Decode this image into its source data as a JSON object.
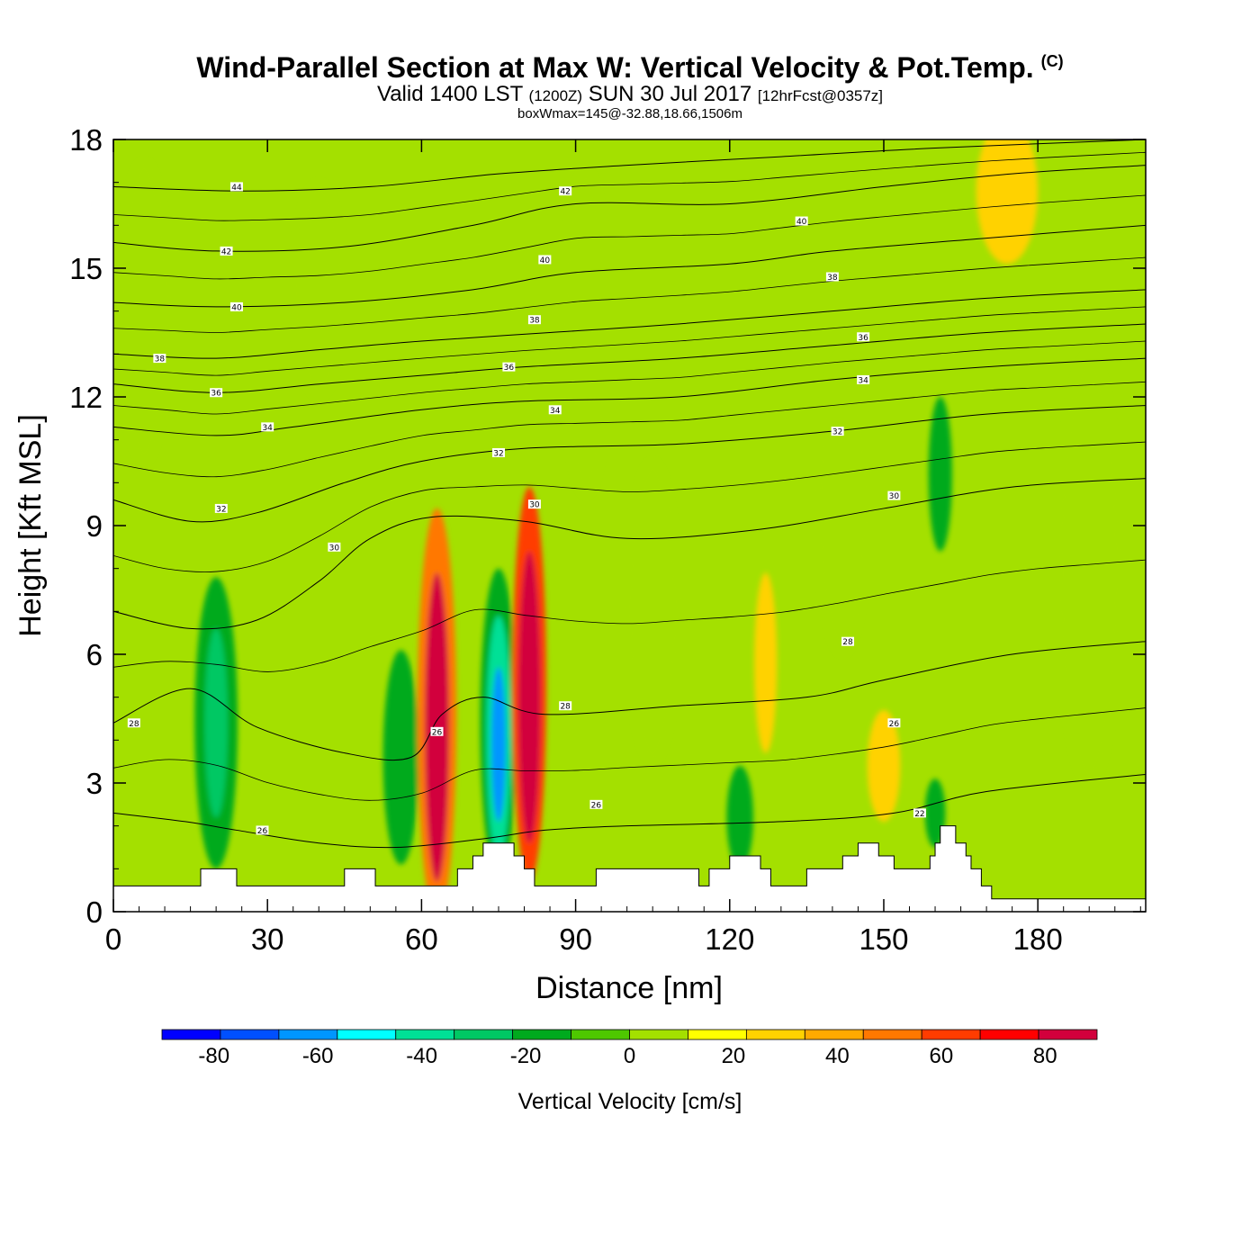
{
  "title": {
    "main": "Wind-Parallel Section at Max W: Vertical Velocity & Pot.Temp.",
    "copyright": "(C)",
    "valid_prefix": "Valid 1400 LST",
    "valid_utc": "(1200Z)",
    "valid_date": "SUN 30 Jul 2017",
    "forecast": "[12hrFcst@0357z]",
    "box_info": "boxWmax=145@-32.88,18.66,1506m"
  },
  "colors": {
    "background_field": "#a4e000",
    "terrain": "#ffffff",
    "contour_line": "#000000",
    "velocity_scale": [
      "#0000ff",
      "#0050ff",
      "#0096ff",
      "#00ffff",
      "#00e096",
      "#00c864",
      "#00aa1e",
      "#4ec800",
      "#a4e000",
      "#ffff00",
      "#ffd200",
      "#ffaa00",
      "#ff7800",
      "#ff3c00",
      "#ff0000",
      "#d2003c"
    ]
  },
  "chart_data": {
    "type": "heatmap",
    "xlabel": "Distance [nm]",
    "ylabel": "Height [Kft MSL]",
    "xlim": [
      0,
      201
    ],
    "ylim": [
      0,
      18
    ],
    "x_ticks": [
      0,
      30,
      60,
      90,
      120,
      150,
      180
    ],
    "y_ticks": [
      0,
      3,
      6,
      9,
      12,
      15,
      18
    ],
    "colorbar": {
      "title": "Vertical Velocity [cm/s]",
      "levels": [
        -90,
        -80,
        -70,
        -60,
        -50,
        -40,
        -30,
        -20,
        -10,
        0,
        10,
        20,
        30,
        40,
        50,
        60,
        70,
        80,
        90
      ],
      "tick_labels": [
        -80,
        -60,
        -40,
        -20,
        0,
        20,
        40,
        60,
        80
      ]
    },
    "terrain_height_kft": [
      [
        0,
        0.6
      ],
      [
        17,
        0.6
      ],
      [
        17,
        1.0
      ],
      [
        24,
        1.0
      ],
      [
        24,
        0.6
      ],
      [
        45,
        0.6
      ],
      [
        45,
        1.0
      ],
      [
        51,
        1.0
      ],
      [
        51,
        0.6
      ],
      [
        67,
        0.6
      ],
      [
        67,
        1.0
      ],
      [
        70,
        1.0
      ],
      [
        70,
        1.3
      ],
      [
        72,
        1.3
      ],
      [
        72,
        1.6
      ],
      [
        78,
        1.6
      ],
      [
        78,
        1.3
      ],
      [
        80,
        1.3
      ],
      [
        80,
        1.0
      ],
      [
        82,
        1.0
      ],
      [
        82,
        0.6
      ],
      [
        94,
        0.6
      ],
      [
        94,
        1.0
      ],
      [
        114,
        1.0
      ],
      [
        114,
        0.6
      ],
      [
        116,
        0.6
      ],
      [
        116,
        1.0
      ],
      [
        120,
        1.0
      ],
      [
        120,
        1.3
      ],
      [
        126,
        1.3
      ],
      [
        126,
        1.0
      ],
      [
        128,
        1.0
      ],
      [
        128,
        0.6
      ],
      [
        135,
        0.6
      ],
      [
        135,
        1.0
      ],
      [
        142,
        1.0
      ],
      [
        142,
        1.3
      ],
      [
        145,
        1.3
      ],
      [
        145,
        1.6
      ],
      [
        149,
        1.6
      ],
      [
        149,
        1.3
      ],
      [
        152,
        1.3
      ],
      [
        152,
        1.0
      ],
      [
        159,
        1.0
      ],
      [
        159,
        1.3
      ],
      [
        160,
        1.3
      ],
      [
        160,
        1.6
      ],
      [
        161,
        1.6
      ],
      [
        161,
        2.0
      ],
      [
        164,
        2.0
      ],
      [
        164,
        1.6
      ],
      [
        166,
        1.6
      ],
      [
        166,
        1.3
      ],
      [
        167,
        1.3
      ],
      [
        167,
        1.0
      ],
      [
        169,
        1.0
      ],
      [
        169,
        0.6
      ],
      [
        171,
        0.6
      ],
      [
        171,
        0.3
      ],
      [
        201,
        0.3
      ]
    ],
    "velocity_cells": [
      {
        "x": 63,
        "y": 4.6,
        "rx": 3.8,
        "ry": 4.8,
        "w": 32
      },
      {
        "x": 63,
        "y": 4.3,
        "rx": 2.4,
        "ry": 3.6,
        "w": 62
      },
      {
        "x": 63,
        "y": 4.1,
        "rx": 1.3,
        "ry": 2.4,
        "w": 85
      },
      {
        "x": 81,
        "y": 5.3,
        "rx": 3.3,
        "ry": 4.6,
        "w": 40
      },
      {
        "x": 81,
        "y": 5.0,
        "rx": 2.2,
        "ry": 3.4,
        "w": 68
      },
      {
        "x": 81,
        "y": 4.8,
        "rx": 1.2,
        "ry": 2.2,
        "w": 88
      },
      {
        "x": 75,
        "y": 4.4,
        "rx": 3.6,
        "ry": 3.6,
        "w": -25
      },
      {
        "x": 75,
        "y": 4.1,
        "rx": 2.4,
        "ry": 2.8,
        "w": -45
      },
      {
        "x": 75,
        "y": 3.9,
        "rx": 1.4,
        "ry": 1.8,
        "w": -70
      },
      {
        "x": 20,
        "y": 4.4,
        "rx": 4.2,
        "ry": 3.4,
        "w": -22
      },
      {
        "x": 20,
        "y": 4.4,
        "rx": 2.2,
        "ry": 2.2,
        "w": -34
      },
      {
        "x": 56,
        "y": 3.6,
        "rx": 3.5,
        "ry": 2.5,
        "w": -22
      },
      {
        "x": 127,
        "y": 5.8,
        "rx": 2.2,
        "ry": 2.1,
        "w": 12
      },
      {
        "x": 150,
        "y": 3.4,
        "rx": 3.2,
        "ry": 1.3,
        "w": 15
      },
      {
        "x": 174,
        "y": 16.8,
        "rx": 6.0,
        "ry": 1.7,
        "w": 12
      },
      {
        "x": 161,
        "y": 10.2,
        "rx": 2.3,
        "ry": 1.8,
        "w": -22
      },
      {
        "x": 160,
        "y": 2.3,
        "rx": 2.0,
        "ry": 0.8,
        "w": -30
      },
      {
        "x": 122,
        "y": 2.2,
        "rx": 2.6,
        "ry": 1.2,
        "w": -22
      },
      {
        "x": 40,
        "y": 14.5,
        "rx": 5.0,
        "ry": 2.5,
        "w": -5
      },
      {
        "x": 92,
        "y": 13.5,
        "rx": 4.5,
        "ry": 3.8,
        "w": -5
      },
      {
        "x": 105,
        "y": 7.0,
        "rx": 5.0,
        "ry": 3.5,
        "w": -5
      },
      {
        "x": 142,
        "y": 9.5,
        "rx": 5.0,
        "ry": 3.5,
        "w": -5
      },
      {
        "x": 190,
        "y": 8.0,
        "rx": 6.0,
        "ry": 5.0,
        "w": -5
      },
      {
        "x": 6,
        "y": 14.0,
        "rx": 5.0,
        "ry": 3.5,
        "w": -5
      }
    ],
    "potential_temperature_contours": [
      {
        "label": "26",
        "points": [
          [
            0,
            2.3
          ],
          [
            14,
            2.1
          ],
          [
            24,
            1.9
          ],
          [
            40,
            1.6
          ],
          [
            55,
            1.5
          ],
          [
            72,
            1.7
          ],
          [
            84,
            1.9
          ],
          [
            100,
            2.0
          ],
          [
            130,
            2.1
          ],
          [
            152,
            2.3
          ],
          [
            170,
            2.8
          ],
          [
            201,
            3.2
          ]
        ]
      },
      {
        "label": "28",
        "points": [
          [
            0,
            4.4
          ],
          [
            15,
            5.2
          ],
          [
            28,
            4.3
          ],
          [
            45,
            3.7
          ],
          [
            58,
            3.6
          ],
          [
            64,
            4.6
          ],
          [
            72,
            5.0
          ],
          [
            84,
            4.6
          ],
          [
            110,
            4.8
          ],
          [
            135,
            5.0
          ],
          [
            150,
            5.4
          ],
          [
            175,
            6.0
          ],
          [
            201,
            6.3
          ]
        ]
      },
      {
        "label": "30",
        "points": [
          [
            0,
            7.0
          ],
          [
            15,
            6.6
          ],
          [
            28,
            6.8
          ],
          [
            40,
            7.7
          ],
          [
            50,
            8.7
          ],
          [
            62,
            9.2
          ],
          [
            80,
            9.1
          ],
          [
            100,
            8.7
          ],
          [
            125,
            8.9
          ],
          [
            150,
            9.4
          ],
          [
            175,
            9.9
          ],
          [
            201,
            10.1
          ]
        ]
      },
      {
        "label": "32",
        "points": [
          [
            0,
            9.6
          ],
          [
            15,
            9.1
          ],
          [
            28,
            9.3
          ],
          [
            45,
            10.0
          ],
          [
            60,
            10.5
          ],
          [
            80,
            10.8
          ],
          [
            110,
            10.9
          ],
          [
            140,
            11.2
          ],
          [
            170,
            11.6
          ],
          [
            201,
            11.8
          ]
        ]
      },
      {
        "label": "34",
        "points": [
          [
            0,
            11.3
          ],
          [
            20,
            11.1
          ],
          [
            35,
            11.3
          ],
          [
            60,
            11.7
          ],
          [
            80,
            11.9
          ],
          [
            110,
            12.0
          ],
          [
            140,
            12.4
          ],
          [
            170,
            12.7
          ],
          [
            201,
            12.9
          ]
        ]
      },
      {
        "label": "36",
        "points": [
          [
            0,
            12.3
          ],
          [
            20,
            12.1
          ],
          [
            40,
            12.3
          ],
          [
            60,
            12.5
          ],
          [
            80,
            12.7
          ],
          [
            110,
            12.9
          ],
          [
            140,
            13.2
          ],
          [
            170,
            13.5
          ],
          [
            201,
            13.7
          ]
        ]
      },
      {
        "label": "38",
        "points": [
          [
            0,
            13.0
          ],
          [
            20,
            12.9
          ],
          [
            40,
            13.1
          ],
          [
            60,
            13.3
          ],
          [
            85,
            13.5
          ],
          [
            110,
            13.7
          ],
          [
            140,
            14.0
          ],
          [
            170,
            14.3
          ],
          [
            201,
            14.5
          ]
        ]
      },
      {
        "label": "40",
        "points": [
          [
            0,
            14.2
          ],
          [
            20,
            14.1
          ],
          [
            45,
            14.2
          ],
          [
            70,
            14.5
          ],
          [
            90,
            14.9
          ],
          [
            120,
            15.1
          ],
          [
            140,
            15.4
          ],
          [
            170,
            15.7
          ],
          [
            201,
            16.0
          ]
        ]
      },
      {
        "label": "42",
        "points": [
          [
            0,
            15.6
          ],
          [
            20,
            15.4
          ],
          [
            45,
            15.5
          ],
          [
            70,
            16.0
          ],
          [
            90,
            16.5
          ],
          [
            120,
            16.5
          ],
          [
            150,
            16.9
          ],
          [
            175,
            17.2
          ],
          [
            201,
            17.4
          ]
        ]
      },
      {
        "label": "44",
        "points": [
          [
            0,
            16.9
          ],
          [
            25,
            16.8
          ],
          [
            50,
            16.9
          ],
          [
            75,
            17.2
          ],
          [
            100,
            17.4
          ],
          [
            130,
            17.6
          ],
          [
            160,
            17.8
          ],
          [
            201,
            18.0
          ]
        ]
      }
    ],
    "contour_labels": [
      {
        "text": "44",
        "x": 24,
        "y": 16.9
      },
      {
        "text": "42",
        "x": 22,
        "y": 15.4
      },
      {
        "text": "40",
        "x": 24,
        "y": 14.1
      },
      {
        "text": "38",
        "x": 9,
        "y": 12.9
      },
      {
        "text": "36",
        "x": 20,
        "y": 12.1
      },
      {
        "text": "34",
        "x": 30,
        "y": 11.3
      },
      {
        "text": "32",
        "x": 21,
        "y": 9.4
      },
      {
        "text": "30",
        "x": 43,
        "y": 8.5
      },
      {
        "text": "28",
        "x": 4,
        "y": 4.4
      },
      {
        "text": "26",
        "x": 29,
        "y": 1.9
      },
      {
        "text": "26",
        "x": 63,
        "y": 4.2
      },
      {
        "text": "42",
        "x": 88,
        "y": 16.8
      },
      {
        "text": "40",
        "x": 84,
        "y": 15.2
      },
      {
        "text": "38",
        "x": 82,
        "y": 13.8
      },
      {
        "text": "36",
        "x": 77,
        "y": 12.7
      },
      {
        "text": "34",
        "x": 86,
        "y": 11.7
      },
      {
        "text": "32",
        "x": 75,
        "y": 10.7
      },
      {
        "text": "30",
        "x": 82,
        "y": 9.5
      },
      {
        "text": "28",
        "x": 88,
        "y": 4.8
      },
      {
        "text": "26",
        "x": 94,
        "y": 2.5
      },
      {
        "text": "40",
        "x": 134,
        "y": 16.1
      },
      {
        "text": "38",
        "x": 140,
        "y": 14.8
      },
      {
        "text": "36",
        "x": 146,
        "y": 13.4
      },
      {
        "text": "34",
        "x": 146,
        "y": 12.4
      },
      {
        "text": "32",
        "x": 141,
        "y": 11.2
      },
      {
        "text": "30",
        "x": 152,
        "y": 9.7
      },
      {
        "text": "28",
        "x": 143,
        "y": 6.3
      },
      {
        "text": "26",
        "x": 152,
        "y": 4.4
      },
      {
        "text": "22",
        "x": 157,
        "y": 2.3
      }
    ]
  }
}
